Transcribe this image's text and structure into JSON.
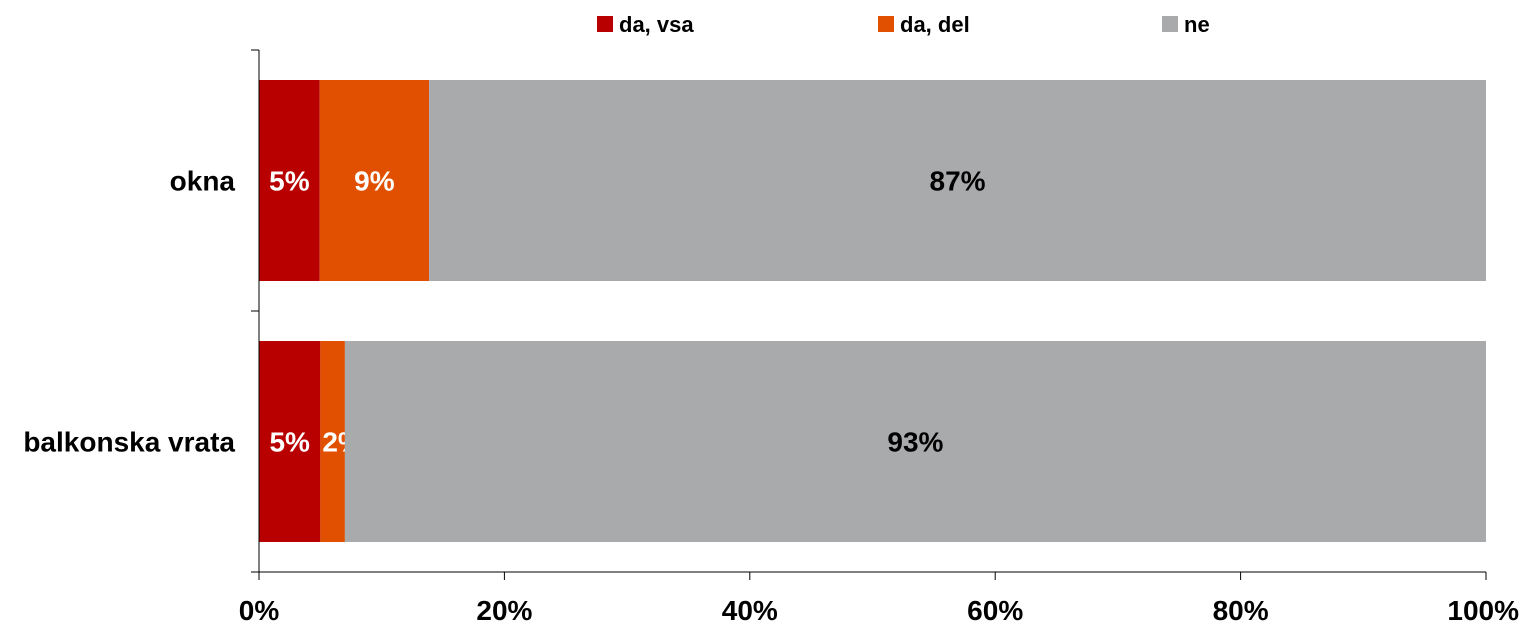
{
  "chart_data": {
    "type": "bar",
    "orientation": "horizontal",
    "stacked": true,
    "percent_stacked": true,
    "categories": [
      "okna",
      "balkonska vrata"
    ],
    "series": [
      {
        "name": "da, vsa",
        "color": "#B80000",
        "values": [
          5,
          5
        ],
        "labels": [
          "5%",
          "5%"
        ],
        "label_color": "#ffffff"
      },
      {
        "name": "da, del",
        "color": "#E05000",
        "values": [
          9,
          2
        ],
        "labels": [
          "9%",
          "2%"
        ],
        "label_color": "#ffffff"
      },
      {
        "name": "ne",
        "color": "#A9AAAC",
        "values": [
          87,
          93
        ],
        "labels": [
          "87%",
          "93%"
        ],
        "label_color": "#000000"
      }
    ],
    "xlim": [
      0,
      100
    ],
    "x_ticks": [
      0,
      20,
      40,
      60,
      80,
      100
    ],
    "x_tick_labels": [
      "0%",
      "20%",
      "40%",
      "60%",
      "80%",
      "100%"
    ],
    "grid": false,
    "legend_position": "top"
  }
}
